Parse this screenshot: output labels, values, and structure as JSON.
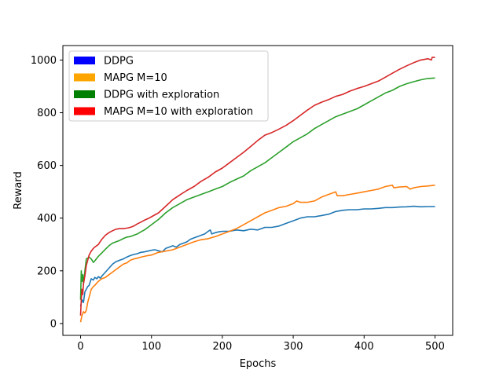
{
  "chart_data": {
    "type": "line",
    "xlabel": "Epochs",
    "ylabel": "Reward",
    "xlim": [
      -25,
      525
    ],
    "ylim": [
      -45,
      1055
    ],
    "xticks": [
      0,
      100,
      200,
      300,
      400,
      500
    ],
    "yticks": [
      0,
      200,
      400,
      600,
      800,
      1000
    ],
    "grid": false,
    "legend_position": "top-left",
    "legend": [
      {
        "label": "DDPG",
        "color": "#0000ff"
      },
      {
        "label": "MAPG M=10",
        "color": "#ffa500"
      },
      {
        "label": "DDPG with exploration",
        "color": "#008000"
      },
      {
        "label": "MAPG M=10 with exploration",
        "color": "#ff0000"
      }
    ],
    "series": [
      {
        "color": "#1f77b4",
        "x": [
          0,
          2,
          4,
          6,
          8,
          10,
          12,
          15,
          18,
          20,
          23,
          25,
          28,
          30,
          35,
          40,
          45,
          50,
          55,
          60,
          65,
          70,
          75,
          80,
          85,
          90,
          95,
          100,
          105,
          110,
          115,
          120,
          125,
          130,
          135,
          140,
          145,
          150,
          155,
          160,
          165,
          170,
          175,
          180,
          183,
          185,
          190,
          195,
          200,
          210,
          220,
          230,
          240,
          250,
          260,
          270,
          280,
          290,
          300,
          310,
          320,
          330,
          340,
          350,
          360,
          370,
          380,
          390,
          400,
          410,
          420,
          430,
          440,
          450,
          460,
          470,
          480,
          490,
          500
        ],
        "y": [
          65,
          90,
          80,
          120,
          130,
          140,
          145,
          170,
          165,
          175,
          170,
          178,
          172,
          180,
          195,
          210,
          225,
          235,
          240,
          245,
          252,
          258,
          262,
          265,
          270,
          272,
          275,
          278,
          280,
          276,
          272,
          285,
          290,
          295,
          290,
          300,
          305,
          310,
          320,
          325,
          330,
          335,
          340,
          350,
          355,
          340,
          345,
          348,
          350,
          350,
          355,
          352,
          358,
          355,
          365,
          365,
          370,
          380,
          390,
          400,
          405,
          405,
          410,
          415,
          425,
          430,
          432,
          432,
          435,
          435,
          437,
          440,
          440,
          442,
          443,
          445,
          443,
          444,
          444
        ]
      },
      {
        "color": "#ff7f0e",
        "x": [
          0,
          2,
          4,
          6,
          8,
          10,
          12,
          15,
          18,
          20,
          25,
          30,
          35,
          40,
          45,
          50,
          55,
          60,
          65,
          70,
          75,
          80,
          85,
          90,
          95,
          100,
          110,
          120,
          130,
          140,
          150,
          160,
          170,
          180,
          190,
          200,
          210,
          220,
          230,
          240,
          250,
          260,
          270,
          280,
          290,
          300,
          305,
          310,
          320,
          330,
          340,
          350,
          360,
          362,
          370,
          380,
          390,
          400,
          410,
          420,
          430,
          440,
          442,
          450,
          460,
          465,
          470,
          480,
          490,
          500
        ],
        "y": [
          5,
          30,
          45,
          40,
          50,
          80,
          100,
          130,
          140,
          145,
          160,
          170,
          175,
          185,
          195,
          205,
          215,
          225,
          230,
          240,
          245,
          248,
          252,
          255,
          258,
          260,
          270,
          275,
          280,
          290,
          300,
          310,
          318,
          322,
          330,
          340,
          350,
          360,
          375,
          390,
          405,
          420,
          430,
          440,
          445,
          455,
          465,
          460,
          460,
          465,
          480,
          490,
          500,
          485,
          485,
          490,
          495,
          500,
          505,
          510,
          520,
          525,
          515,
          518,
          520,
          510,
          515,
          520,
          522,
          525
        ]
      },
      {
        "color": "#2ca02c",
        "x": [
          0,
          1,
          2,
          3,
          4,
          5,
          6,
          8,
          10,
          12,
          15,
          18,
          20,
          25,
          30,
          35,
          40,
          45,
          50,
          55,
          60,
          65,
          70,
          75,
          80,
          85,
          90,
          95,
          100,
          110,
          120,
          130,
          140,
          150,
          160,
          170,
          180,
          190,
          200,
          210,
          220,
          230,
          240,
          250,
          260,
          270,
          280,
          290,
          300,
          310,
          320,
          330,
          340,
          350,
          360,
          370,
          380,
          390,
          400,
          410,
          420,
          430,
          440,
          450,
          460,
          470,
          480,
          490,
          500
        ],
        "y": [
          90,
          200,
          160,
          185,
          150,
          175,
          200,
          245,
          248,
          252,
          245,
          232,
          238,
          255,
          268,
          282,
          295,
          305,
          310,
          315,
          322,
          328,
          330,
          335,
          340,
          348,
          355,
          365,
          375,
          395,
          420,
          440,
          455,
          470,
          480,
          490,
          500,
          510,
          520,
          535,
          548,
          560,
          580,
          595,
          610,
          630,
          650,
          670,
          690,
          705,
          720,
          740,
          755,
          770,
          785,
          795,
          805,
          815,
          830,
          845,
          860,
          875,
          885,
          900,
          910,
          918,
          925,
          930,
          932
        ]
      },
      {
        "color": "#d62728",
        "x": [
          0,
          1,
          2,
          3,
          4,
          6,
          8,
          10,
          12,
          15,
          18,
          20,
          25,
          30,
          35,
          40,
          45,
          50,
          55,
          60,
          65,
          70,
          75,
          80,
          85,
          90,
          95,
          100,
          110,
          120,
          130,
          140,
          150,
          160,
          170,
          180,
          190,
          200,
          210,
          220,
          230,
          240,
          250,
          260,
          270,
          280,
          290,
          300,
          310,
          320,
          330,
          340,
          350,
          360,
          370,
          380,
          390,
          400,
          410,
          420,
          430,
          440,
          450,
          460,
          470,
          480,
          490,
          495,
          496,
          500
        ],
        "y": [
          30,
          90,
          130,
          110,
          150,
          180,
          220,
          240,
          260,
          275,
          285,
          290,
          300,
          320,
          335,
          345,
          352,
          358,
          360,
          360,
          362,
          365,
          370,
          378,
          385,
          392,
          398,
          405,
          420,
          445,
          470,
          488,
          505,
          520,
          540,
          555,
          575,
          590,
          610,
          630,
          650,
          672,
          695,
          715,
          725,
          738,
          752,
          770,
          790,
          810,
          828,
          840,
          850,
          862,
          870,
          882,
          892,
          900,
          910,
          920,
          935,
          950,
          965,
          978,
          990,
          1000,
          1005,
          1000,
          1010,
          1010
        ]
      }
    ]
  }
}
